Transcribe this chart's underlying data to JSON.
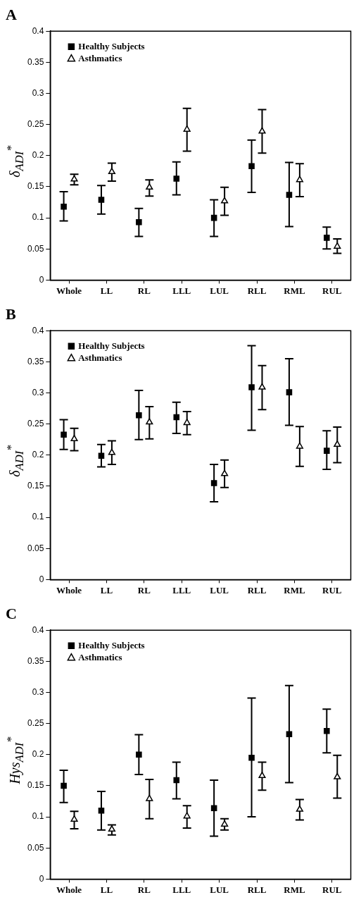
{
  "chart_data": [
    {
      "type": "scatter",
      "title": "A",
      "ylabel": "δ$_{ADI}$$^{*}$",
      "categories": [
        "Whole",
        "LL",
        "RL",
        "LLL",
        "LUL",
        "RLL",
        "RML",
        "RUL"
      ],
      "ylim": [
        0,
        0.4
      ],
      "yticks": [
        0,
        0.05,
        0.1,
        0.15,
        0.2,
        0.25,
        0.3,
        0.35,
        0.4
      ],
      "grid": false,
      "legend": "top left",
      "series": [
        {
          "name": "Healthy Subjects",
          "color": "#000000",
          "marker": "square",
          "values": [
            0.118,
            0.129,
            0.093,
            0.163,
            0.1,
            0.183,
            0.137,
            0.068
          ],
          "errors": [
            [
              0.095,
              0.142
            ],
            [
              0.106,
              0.152
            ],
            [
              0.07,
              0.115
            ],
            [
              0.137,
              0.19
            ],
            [
              0.07,
              0.129
            ],
            [
              0.141,
              0.225
            ],
            [
              0.086,
              0.189
            ],
            [
              0.05,
              0.085
            ]
          ]
        },
        {
          "name": "Asthmatics",
          "color": "#000000",
          "marker": "triangle",
          "values": [
            0.162,
            0.174,
            0.149,
            0.242,
            0.127,
            0.239,
            0.161,
            0.054
          ],
          "errors": [
            [
              0.153,
              0.17
            ],
            [
              0.159,
              0.188
            ],
            [
              0.135,
              0.161
            ],
            [
              0.207,
              0.276
            ],
            [
              0.104,
              0.149
            ],
            [
              0.204,
              0.274
            ],
            [
              0.134,
              0.187
            ],
            [
              0.043,
              0.066
            ]
          ]
        }
      ]
    },
    {
      "type": "scatter",
      "title": "B",
      "ylabel": "δ$_{ADI}$$^{*}$",
      "categories": [
        "Whole",
        "LL",
        "RL",
        "LLL",
        "LUL",
        "RLL",
        "RML",
        "RUL"
      ],
      "ylim": [
        0,
        0.4
      ],
      "yticks": [
        0,
        0.05,
        0.1,
        0.15,
        0.2,
        0.25,
        0.3,
        0.35,
        0.4
      ],
      "grid": false,
      "legend": "top left",
      "series": [
        {
          "name": "Healthy Subjects",
          "color": "#000000",
          "marker": "square",
          "values": [
            0.233,
            0.199,
            0.264,
            0.261,
            0.155,
            0.309,
            0.301,
            0.207
          ],
          "errors": [
            [
              0.209,
              0.257
            ],
            [
              0.181,
              0.217
            ],
            [
              0.225,
              0.304
            ],
            [
              0.235,
              0.285
            ],
            [
              0.125,
              0.185
            ],
            [
              0.24,
              0.376
            ],
            [
              0.248,
              0.355
            ],
            [
              0.177,
              0.239
            ]
          ]
        },
        {
          "name": "Asthmatics",
          "color": "#000000",
          "marker": "triangle",
          "values": [
            0.226,
            0.204,
            0.253,
            0.252,
            0.17,
            0.309,
            0.214,
            0.217
          ],
          "errors": [
            [
              0.207,
              0.243
            ],
            [
              0.185,
              0.223
            ],
            [
              0.226,
              0.278
            ],
            [
              0.233,
              0.27
            ],
            [
              0.148,
              0.192
            ],
            [
              0.273,
              0.344
            ],
            [
              0.182,
              0.246
            ],
            [
              0.188,
              0.245
            ]
          ]
        }
      ]
    },
    {
      "type": "scatter",
      "title": "C",
      "ylabel": "Hys$_{ADI}$$^{*}$",
      "categories": [
        "Whole",
        "LL",
        "RL",
        "LLL",
        "LUL",
        "RLL",
        "RML",
        "RUL"
      ],
      "ylim": [
        0,
        0.4
      ],
      "yticks": [
        0,
        0.05,
        0.1,
        0.15,
        0.2,
        0.25,
        0.3,
        0.35,
        0.4
      ],
      "grid": false,
      "legend": "top left",
      "series": [
        {
          "name": "Healthy Subjects",
          "color": "#000000",
          "marker": "square",
          "values": [
            0.15,
            0.11,
            0.2,
            0.159,
            0.114,
            0.195,
            0.233,
            0.238
          ],
          "errors": [
            [
              0.123,
              0.175
            ],
            [
              0.079,
              0.141
            ],
            [
              0.168,
              0.232
            ],
            [
              0.129,
              0.188
            ],
            [
              0.069,
              0.159
            ],
            [
              0.1,
              0.291
            ],
            [
              0.155,
              0.311
            ],
            [
              0.203,
              0.273
            ]
          ]
        },
        {
          "name": "Asthmatics",
          "color": "#000000",
          "marker": "triangle",
          "values": [
            0.096,
            0.08,
            0.129,
            0.101,
            0.088,
            0.166,
            0.112,
            0.164
          ],
          "errors": [
            [
              0.081,
              0.109
            ],
            [
              0.071,
              0.087
            ],
            [
              0.097,
              0.16
            ],
            [
              0.082,
              0.118
            ],
            [
              0.079,
              0.097
            ],
            [
              0.143,
              0.188
            ],
            [
              0.095,
              0.128
            ],
            [
              0.13,
              0.199
            ]
          ]
        }
      ]
    }
  ]
}
